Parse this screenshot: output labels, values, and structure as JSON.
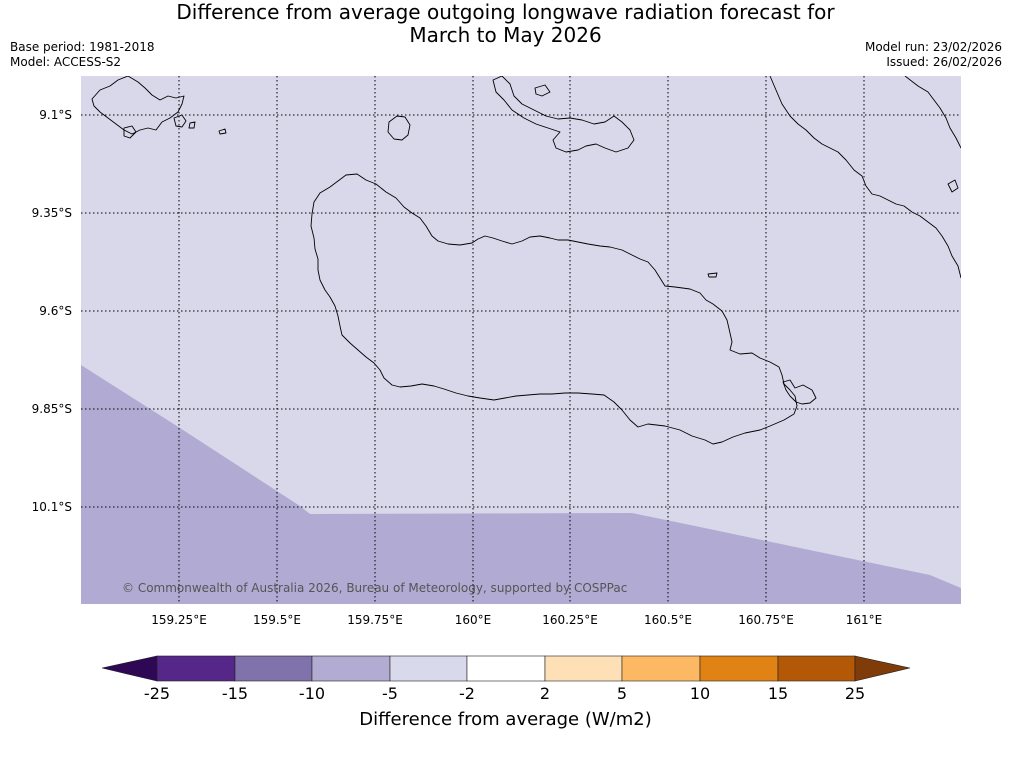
{
  "title": {
    "line1": "Difference from average outgoing longwave radiation forecast for",
    "line2": "March to May 2026"
  },
  "meta": {
    "base_period": "Base period: 1981-2018",
    "model": "Model: ACCESS-S2",
    "model_run": "Model run: 23/02/2026",
    "issued": "Issued: 26/02/2026"
  },
  "map": {
    "lat_labels": [
      "9.1°S",
      "9.35°S",
      "9.6°S",
      "9.85°S",
      "10.1°S"
    ],
    "lon_labels": [
      "159.25°E",
      "159.5°E",
      "159.75°E",
      "160°E",
      "160.25°E",
      "160.5°E",
      "160.75°E",
      "161°E"
    ],
    "copyright": "© Commonwealth of Australia 2026, Bureau of Meteorology, supported by COSPPac",
    "colors": {
      "background_class": "#d8d8ea",
      "lower_class": "#b1abd3",
      "coastline": "#000000"
    }
  },
  "colorbar": {
    "title": "Difference from average (W/m2)",
    "tick_labels": [
      "-25",
      "-15",
      "-10",
      "-5",
      "-2",
      "2",
      "5",
      "10",
      "15",
      "25"
    ],
    "colors": [
      "#2e0854",
      "#542788",
      "#8073ac",
      "#b2abd2",
      "#d8daeb",
      "#ffffff",
      "#fee0b6",
      "#fdb863",
      "#e08214",
      "#b35806",
      "#7f3b08"
    ]
  }
}
